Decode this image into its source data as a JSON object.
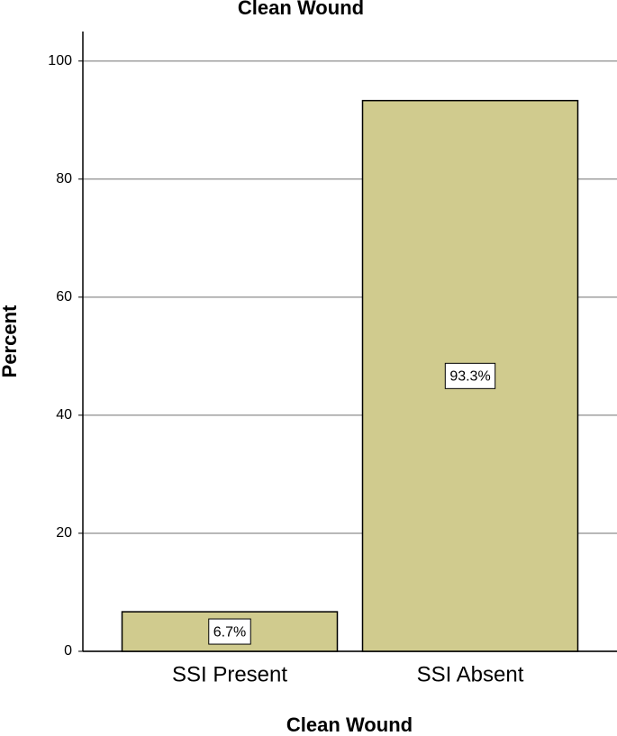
{
  "chart_data": {
    "type": "bar",
    "title": "Clean Wound",
    "x_label": "Clean Wound",
    "y_label": "Percent",
    "categories": [
      "SSI Present",
      "SSI Absent"
    ],
    "values": [
      6.7,
      93.3
    ],
    "value_labels": [
      "6.7%",
      "93.3%"
    ],
    "color": "#d0cb8e",
    "ylim": [
      0,
      105
    ],
    "yticks": [
      0,
      20,
      40,
      60,
      80,
      100
    ],
    "grid": true
  }
}
